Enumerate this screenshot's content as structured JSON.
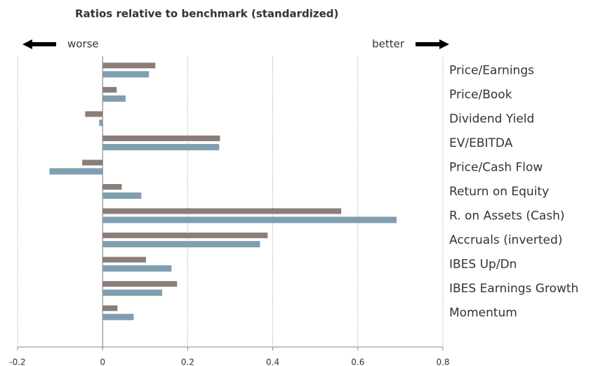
{
  "chart_data": {
    "type": "barh",
    "title": "Ratios relative to benchmark (standardized)",
    "annotations": [
      "worse",
      "better"
    ],
    "categories": [
      "Price/Earnings",
      "Price/Book",
      "Dividend Yield",
      "EV/EBITDA",
      "Price/Cash Flow",
      "Return on Equity",
      "R. on Assets (Cash)",
      "Accruals (inverted)",
      "IBES Up/Dn",
      "IBES Earnings Growth",
      "Momentum"
    ],
    "series": [
      {
        "color": "#8b7d77",
        "values": [
          0.124,
          0.033,
          -0.041,
          0.276,
          -0.048,
          0.045,
          0.561,
          0.388,
          0.102,
          0.175,
          0.035
        ]
      },
      {
        "color": "#7f9fb0",
        "values": [
          0.109,
          0.054,
          -0.008,
          0.274,
          -0.125,
          0.091,
          0.691,
          0.37,
          0.162,
          0.14,
          0.073
        ]
      }
    ],
    "xlim": [
      -0.2,
      0.8
    ],
    "xticks": [
      -0.2,
      0,
      0.2,
      0.4,
      0.6,
      0.8
    ],
    "grid": true
  }
}
